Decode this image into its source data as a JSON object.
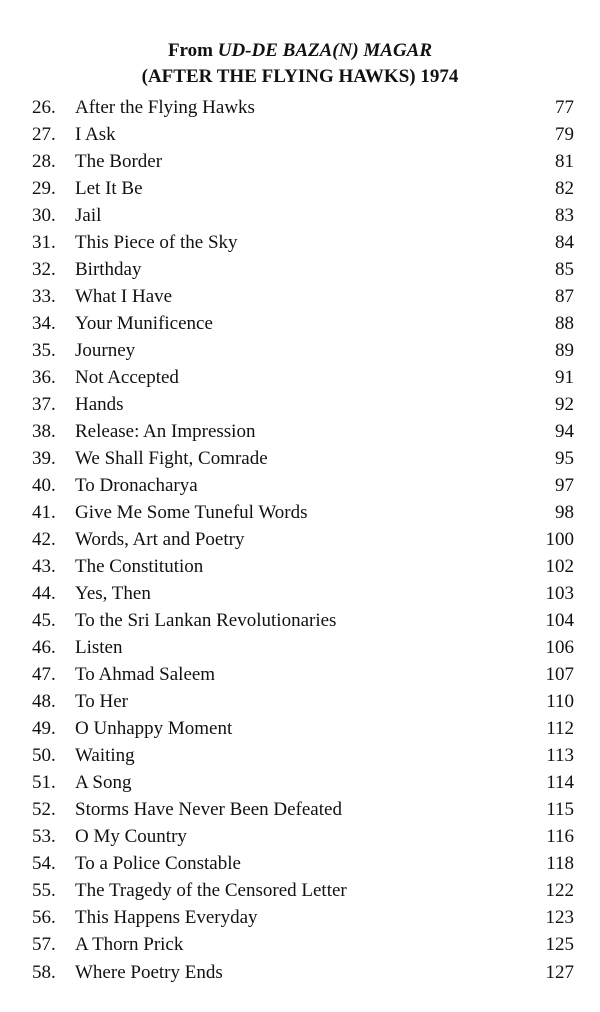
{
  "heading": {
    "line1_prefix": "From ",
    "line1_italic": "UD-DE BAZA(N) MAGAR",
    "line2": "(AFTER THE FLYING HAWKS) 1974"
  },
  "entries": [
    {
      "num": "26.",
      "title": "After the Flying Hawks",
      "page": "77"
    },
    {
      "num": "27.",
      "title": "I Ask",
      "page": "79"
    },
    {
      "num": "28.",
      "title": "The Border",
      "page": "81"
    },
    {
      "num": "29.",
      "title": "Let It Be",
      "page": "82"
    },
    {
      "num": "30.",
      "title": "Jail",
      "page": "83"
    },
    {
      "num": "31.",
      "title": "This Piece of the Sky",
      "page": "84"
    },
    {
      "num": "32.",
      "title": "Birthday",
      "page": "85"
    },
    {
      "num": "33.",
      "title": "What I Have",
      "page": "87"
    },
    {
      "num": "34.",
      "title": "Your Munificence",
      "page": "88"
    },
    {
      "num": "35.",
      "title": "Journey",
      "page": "89"
    },
    {
      "num": "36.",
      "title": "Not Accepted",
      "page": "91"
    },
    {
      "num": "37.",
      "title": "Hands",
      "page": "92"
    },
    {
      "num": "38.",
      "title": "Release: An Impression",
      "page": "94"
    },
    {
      "num": "39.",
      "title": "We Shall Fight, Comrade",
      "page": "95"
    },
    {
      "num": "40.",
      "title": "To Dronacharya",
      "page": "97"
    },
    {
      "num": "41.",
      "title": "Give Me Some Tuneful Words",
      "page": "98"
    },
    {
      "num": "42.",
      "title": "Words, Art and Poetry",
      "page": "100"
    },
    {
      "num": "43.",
      "title": "The Constitution",
      "page": "102"
    },
    {
      "num": "44.",
      "title": "Yes, Then",
      "page": "103"
    },
    {
      "num": "45.",
      "title": "To the Sri Lankan Revolutionaries",
      "page": "104"
    },
    {
      "num": "46.",
      "title": "Listen",
      "page": "106"
    },
    {
      "num": "47.",
      "title": "To Ahmad Saleem",
      "page": "107"
    },
    {
      "num": "48.",
      "title": "To Her",
      "page": "110"
    },
    {
      "num": "49.",
      "title": "O Unhappy Moment",
      "page": "112"
    },
    {
      "num": "50.",
      "title": "Waiting",
      "page": "113"
    },
    {
      "num": "51.",
      "title": "A Song",
      "page": "114"
    },
    {
      "num": "52.",
      "title": "Storms Have Never Been Defeated",
      "page": "115"
    },
    {
      "num": "53.",
      "title": "O My Country",
      "page": "116"
    },
    {
      "num": "54.",
      "title": "To a Police Constable",
      "page": "118"
    },
    {
      "num": "55.",
      "title": "The Tragedy of the Censored Letter",
      "page": "122"
    },
    {
      "num": "56.",
      "title": "This Happens Everyday",
      "page": "123"
    },
    {
      "num": "57.",
      "title": "A Thorn Prick",
      "page": "125"
    },
    {
      "num": "58.",
      "title": "Where Poetry Ends",
      "page": "127"
    }
  ]
}
